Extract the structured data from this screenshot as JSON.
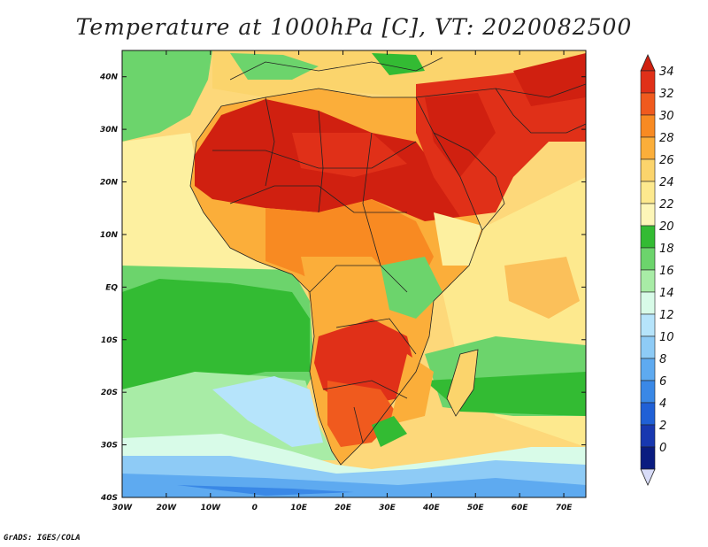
{
  "title": "Temperature at 1000hPa [C], VT: 2020082500",
  "credit": "GrADS: IGES/COLA",
  "map": {
    "lon_range": [
      -30,
      75
    ],
    "lat_range": [
      -40,
      45
    ],
    "x_ticks": [
      {
        "lon": -30,
        "label": "30W"
      },
      {
        "lon": -20,
        "label": "20W"
      },
      {
        "lon": -10,
        "label": "10W"
      },
      {
        "lon": 0,
        "label": "0"
      },
      {
        "lon": 10,
        "label": "10E"
      },
      {
        "lon": 20,
        "label": "20E"
      },
      {
        "lon": 30,
        "label": "30E"
      },
      {
        "lon": 40,
        "label": "40E"
      },
      {
        "lon": 50,
        "label": "50E"
      },
      {
        "lon": 60,
        "label": "60E"
      },
      {
        "lon": 70,
        "label": "70E"
      }
    ],
    "y_ticks": [
      {
        "lat": 40,
        "label": "40N"
      },
      {
        "lat": 30,
        "label": "30N"
      },
      {
        "lat": 20,
        "label": "20N"
      },
      {
        "lat": 10,
        "label": "10N"
      },
      {
        "lat": 0,
        "label": "EQ"
      },
      {
        "lat": -10,
        "label": "10S"
      },
      {
        "lat": -20,
        "label": "20S"
      },
      {
        "lat": -30,
        "label": "30S"
      },
      {
        "lat": -40,
        "label": "40S"
      }
    ]
  },
  "colorbar": {
    "levels": [
      "34",
      "32",
      "30",
      "28",
      "26",
      "24",
      "22",
      "20",
      "18",
      "16",
      "14",
      "12",
      "10",
      "8",
      "6",
      "4",
      "2",
      "0"
    ],
    "colors": [
      "#e03018",
      "#f05a1e",
      "#f88a22",
      "#fbae3a",
      "#fbd46c",
      "#fde98e",
      "#fdf6b8",
      "#33bb33",
      "#6cd46c",
      "#a8eca6",
      "#d8fbe8",
      "#b6e4fb",
      "#8ecbf6",
      "#5eaaf0",
      "#3a88e6",
      "#2060d6",
      "#1838b0",
      "#0a1c80"
    ],
    "top_color": "#d02010",
    "bottom_color": "#d8dcf8"
  }
}
